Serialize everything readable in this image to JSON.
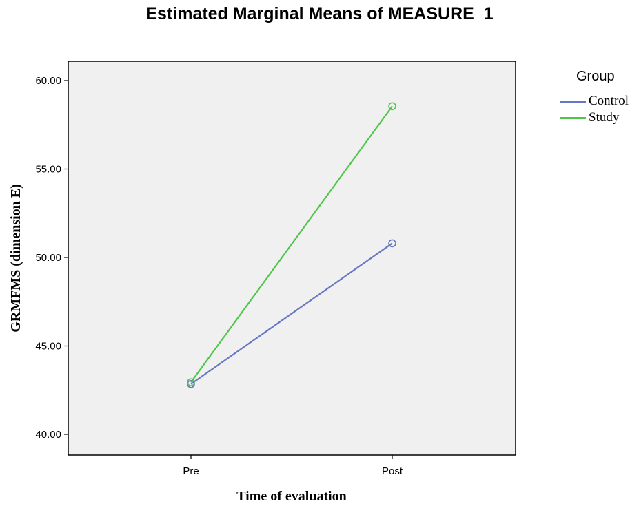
{
  "chart_data": {
    "type": "line",
    "title": "Estimated Marginal Means of MEASURE_1",
    "xlabel": "Time of evaluation",
    "ylabel": "GRMFMS (dimension E)",
    "categories": [
      "Pre",
      "Post"
    ],
    "ylim": [
      40.0,
      60.0
    ],
    "yticks": [
      "40.00",
      "45.00",
      "50.00",
      "55.00",
      "60.00"
    ],
    "ytick_values": [
      40,
      45,
      50,
      55,
      60
    ],
    "grid": false,
    "legend_title": "Group",
    "legend_position": "right",
    "series": [
      {
        "name": "Control",
        "values": [
          42.85,
          50.8
        ],
        "color": "#6677c4"
      },
      {
        "name": "Study",
        "values": [
          42.95,
          58.55
        ],
        "color": "#4fc64a"
      }
    ],
    "plot_background": "#f0f0f0"
  }
}
